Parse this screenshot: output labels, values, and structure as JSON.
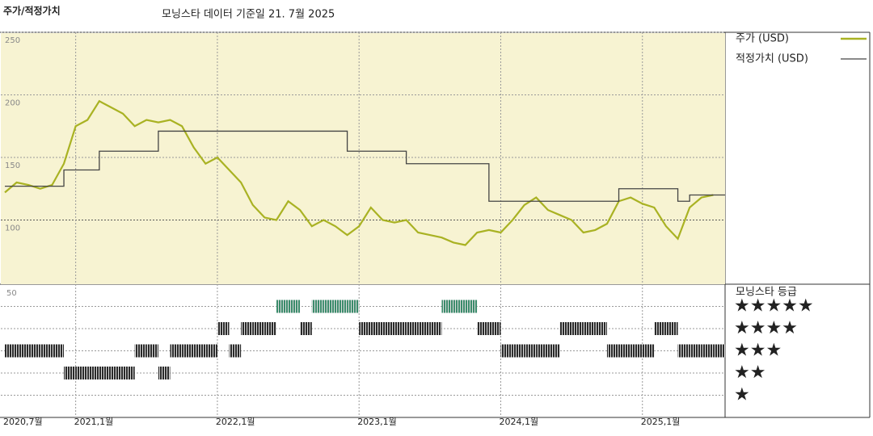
{
  "chart_data": [
    {
      "type": "line",
      "title": "주가/적정가치",
      "subtitle": "모닝스타 데이터 기준일 21. 7월 2025",
      "x": [
        "2020-07",
        "2020-08",
        "2020-09",
        "2020-10",
        "2020-11",
        "2020-12",
        "2021-01",
        "2021-02",
        "2021-03",
        "2021-04",
        "2021-05",
        "2021-06",
        "2021-07",
        "2021-08",
        "2021-09",
        "2021-10",
        "2021-11",
        "2021-12",
        "2022-01",
        "2022-02",
        "2022-03",
        "2022-04",
        "2022-05",
        "2022-06",
        "2022-07",
        "2022-08",
        "2022-09",
        "2022-10",
        "2022-11",
        "2022-12",
        "2023-01",
        "2023-02",
        "2023-03",
        "2023-04",
        "2023-05",
        "2023-06",
        "2023-07",
        "2023-08",
        "2023-09",
        "2023-10",
        "2023-11",
        "2023-12",
        "2024-01",
        "2024-02",
        "2024-03",
        "2024-04",
        "2024-05",
        "2024-06",
        "2024-07",
        "2024-08",
        "2024-09",
        "2024-10",
        "2024-11",
        "2024-12",
        "2025-01",
        "2025-02",
        "2025-03",
        "2025-04",
        "2025-05",
        "2025-06",
        "2025-07"
      ],
      "series": [
        {
          "name": "주가 (USD)",
          "color": "#a9b223",
          "values": [
            122,
            130,
            128,
            125,
            128,
            145,
            175,
            180,
            195,
            190,
            185,
            175,
            180,
            178,
            180,
            175,
            158,
            145,
            150,
            140,
            130,
            112,
            102,
            100,
            115,
            108,
            95,
            100,
            95,
            88,
            95,
            110,
            100,
            98,
            100,
            90,
            88,
            86,
            82,
            80,
            90,
            92,
            90,
            100,
            112,
            118,
            108,
            104,
            100,
            90,
            92,
            97,
            115,
            118,
            113,
            110,
            95,
            85,
            110,
            118,
            120
          ]
        },
        {
          "name": "적정가치 (USD)",
          "color": "#444444",
          "step": true,
          "values": [
            127,
            127,
            127,
            127,
            127,
            140,
            140,
            140,
            155,
            155,
            155,
            155,
            155,
            171,
            171,
            171,
            171,
            171,
            171,
            171,
            171,
            171,
            171,
            171,
            171,
            171,
            171,
            171,
            171,
            155,
            155,
            155,
            155,
            155,
            145,
            145,
            145,
            145,
            145,
            145,
            145,
            115,
            115,
            115,
            115,
            115,
            115,
            115,
            115,
            115,
            115,
            115,
            125,
            125,
            125,
            125,
            125,
            115,
            120,
            120,
            120
          ]
        }
      ],
      "xlim": [
        "2020-07",
        "2025-08"
      ],
      "xticks": [
        {
          "value": "2020-07",
          "label": "2020,7월"
        },
        {
          "value": "2021-01",
          "label": "2021,1월"
        },
        {
          "value": "2022-01",
          "label": "2022,1월"
        },
        {
          "value": "2023-01",
          "label": "2023,1월"
        },
        {
          "value": "2024-01",
          "label": "2024,1월"
        },
        {
          "value": "2025-01",
          "label": "2025,1월"
        }
      ],
      "ylim": [
        50,
        250
      ],
      "yticks": [
        100,
        150,
        200,
        250
      ],
      "grid": true,
      "background": "#f7f3d2"
    },
    {
      "type": "rating",
      "title": "모닝스타 등급",
      "corner_label": "50",
      "five_star_color": "#3c8c6c",
      "color": "#2a2a2a",
      "values": [
        3,
        3,
        3,
        3,
        3,
        2,
        2,
        2,
        2,
        2,
        2,
        3,
        3,
        2,
        3,
        3,
        3,
        3,
        4,
        3,
        4,
        4,
        4,
        5,
        5,
        4,
        5,
        5,
        5,
        5,
        4,
        4,
        4,
        4,
        4,
        4,
        4,
        5,
        5,
        5,
        4,
        4,
        3,
        3,
        3,
        3,
        3,
        4,
        4,
        4,
        4,
        3,
        3,
        3,
        3,
        4,
        4,
        3,
        3,
        3,
        3
      ],
      "ylim": [
        0,
        6
      ],
      "yticks": [
        {
          "value": 5,
          "label": "★★★★★"
        },
        {
          "value": 4,
          "label": "★★★★"
        },
        {
          "value": 3,
          "label": "★★★"
        },
        {
          "value": 2,
          "label": "★★"
        },
        {
          "value": 1,
          "label": "★"
        }
      ]
    }
  ]
}
